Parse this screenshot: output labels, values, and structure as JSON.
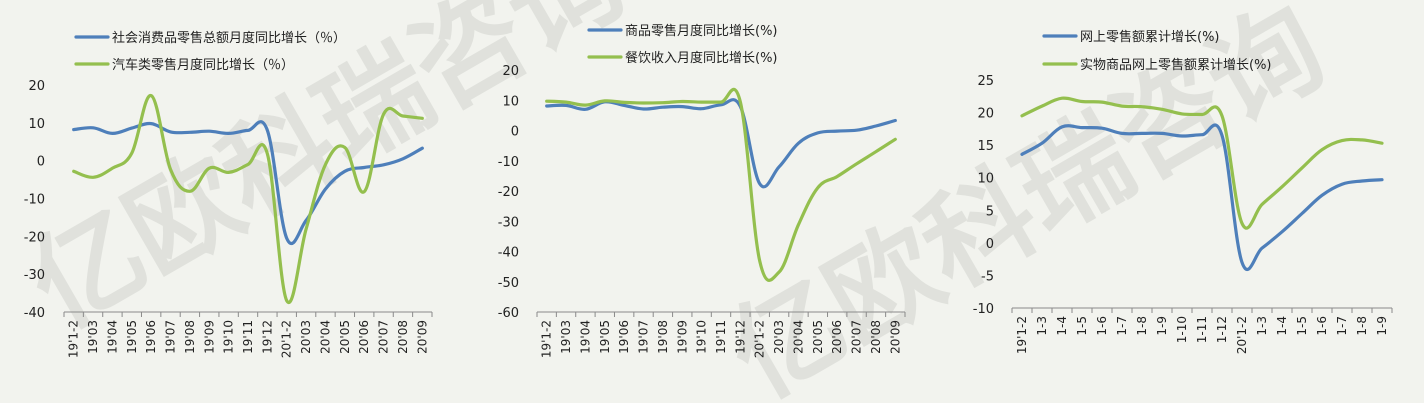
{
  "colors": {
    "blue": "#4e7fba",
    "green": "#94bf4e",
    "axis": "#8a8a8a",
    "background": "#f2f3ee"
  },
  "watermark": "亿欧科瑞咨询",
  "chart_data": [
    {
      "type": "line",
      "categories": [
        "19'1-2",
        "19'03",
        "19'04",
        "19'05",
        "19'06",
        "19'07",
        "19'08",
        "19'09",
        "19'10",
        "19'11",
        "19'12",
        "20'1-2",
        "20'03",
        "20'04",
        "20'05",
        "20'06",
        "20'07",
        "20'08",
        "20'09"
      ],
      "ylim": [
        -40,
        20
      ],
      "yticks": [
        20,
        10,
        0,
        -10,
        -20,
        -30,
        -40
      ],
      "grid": false,
      "legend_position": "top",
      "series": [
        {
          "name": "社会消费品零售总额月度同比增长（％）",
          "color": "blue",
          "values": [
            8.2,
            8.7,
            7.2,
            8.6,
            9.8,
            7.6,
            7.5,
            7.8,
            7.2,
            8.0,
            8.0,
            -20.5,
            -15.8,
            -7.5,
            -2.8,
            -1.8,
            -1.1,
            0.5,
            3.3
          ]
        },
        {
          "name": "汽车类零售月度同比增长（％）",
          "color": "green",
          "values": [
            -2.8,
            -4.4,
            -2.0,
            2.0,
            17.2,
            -2.3,
            -8.1,
            -2.0,
            -3.1,
            -1.0,
            1.8,
            -37.0,
            -18.1,
            -1.0,
            3.5,
            -8.2,
            12.3,
            11.8,
            11.2
          ]
        }
      ]
    },
    {
      "type": "line",
      "categories": [
        "19'1-2",
        "19'03",
        "19'04",
        "19'05",
        "19'06",
        "19'07",
        "19'08",
        "19'09",
        "19'10",
        "19'11",
        "19'12",
        "20'1-2",
        "20'03",
        "20'04",
        "20'05",
        "20'06",
        "20'07",
        "20'08",
        "20'09"
      ],
      "ylim": [
        -60,
        20
      ],
      "yticks": [
        20,
        10,
        0,
        -10,
        -20,
        -30,
        -40,
        -50,
        -60
      ],
      "grid": false,
      "legend_position": "top",
      "series": [
        {
          "name": "商品零售月度同比增长(%)",
          "color": "blue",
          "values": [
            8.1,
            8.3,
            7.0,
            9.5,
            8.3,
            7.1,
            7.7,
            7.9,
            7.2,
            8.5,
            7.9,
            -17.6,
            -12.0,
            -4.2,
            -0.8,
            -0.2,
            0.1,
            1.5,
            3.3
          ]
        },
        {
          "name": "餐饮收入月度同比增长(%)",
          "color": "green",
          "values": [
            9.7,
            9.4,
            8.4,
            9.8,
            9.3,
            9.1,
            9.2,
            9.6,
            9.4,
            9.4,
            9.4,
            -43.1,
            -46.8,
            -31.1,
            -18.9,
            -15.2,
            -11.0,
            -7.0,
            -2.9
          ]
        }
      ]
    },
    {
      "type": "line",
      "categories": [
        "19'1-2",
        "1-3",
        "1-4",
        "1-5",
        "1-6",
        "1-7",
        "1-8",
        "1-9",
        "1-10",
        "1-11",
        "1-12",
        "20'1-2",
        "1-3",
        "1-4",
        "1-5",
        "1-6",
        "1-7",
        "1-8",
        "1-9"
      ],
      "ylim": [
        -10,
        25
      ],
      "yticks": [
        25,
        20,
        15,
        10,
        5,
        0,
        -5,
        -10
      ],
      "grid": false,
      "legend_position": "top",
      "series": [
        {
          "name": "网上零售额累计增长(%)",
          "color": "blue",
          "values": [
            13.6,
            15.3,
            17.8,
            17.7,
            17.6,
            16.8,
            16.8,
            16.8,
            16.4,
            16.6,
            16.5,
            -3.0,
            -0.8,
            1.7,
            4.5,
            7.3,
            9.0,
            9.5,
            9.7
          ]
        },
        {
          "name": "实物商品网上零售额累计增长(%)",
          "color": "green",
          "values": [
            19.5,
            21.0,
            22.2,
            21.7,
            21.6,
            21.0,
            20.9,
            20.5,
            19.8,
            19.7,
            19.5,
            3.0,
            5.9,
            8.6,
            11.5,
            14.3,
            15.7,
            15.8,
            15.3
          ]
        }
      ]
    }
  ]
}
